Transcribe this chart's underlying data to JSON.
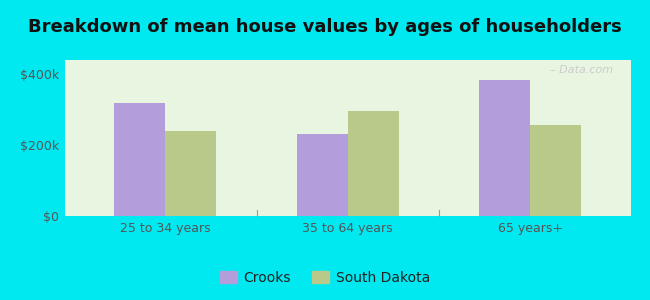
{
  "title": "Breakdown of mean house values by ages of householders",
  "categories": [
    "25 to 34 years",
    "35 to 64 years",
    "65 years+"
  ],
  "crooks_values": [
    320000,
    230000,
    385000
  ],
  "sd_values": [
    240000,
    295000,
    258000
  ],
  "crooks_color": "#b39ddb",
  "sd_color": "#b8c98a",
  "background_outer": "#00e8f0",
  "background_inner_start": "#e8f5e0",
  "background_inner_end": "#f5f5f0",
  "yticks": [
    0,
    200000,
    400000
  ],
  "ytick_labels": [
    "$0",
    "$200k",
    "$400k"
  ],
  "ylim": [
    0,
    440000
  ],
  "bar_width": 0.28,
  "legend_crooks": "Crooks",
  "legend_sd": "South Dakota",
  "title_fontsize": 13,
  "tick_fontsize": 9,
  "legend_fontsize": 10,
  "watermark": "– Data.com"
}
